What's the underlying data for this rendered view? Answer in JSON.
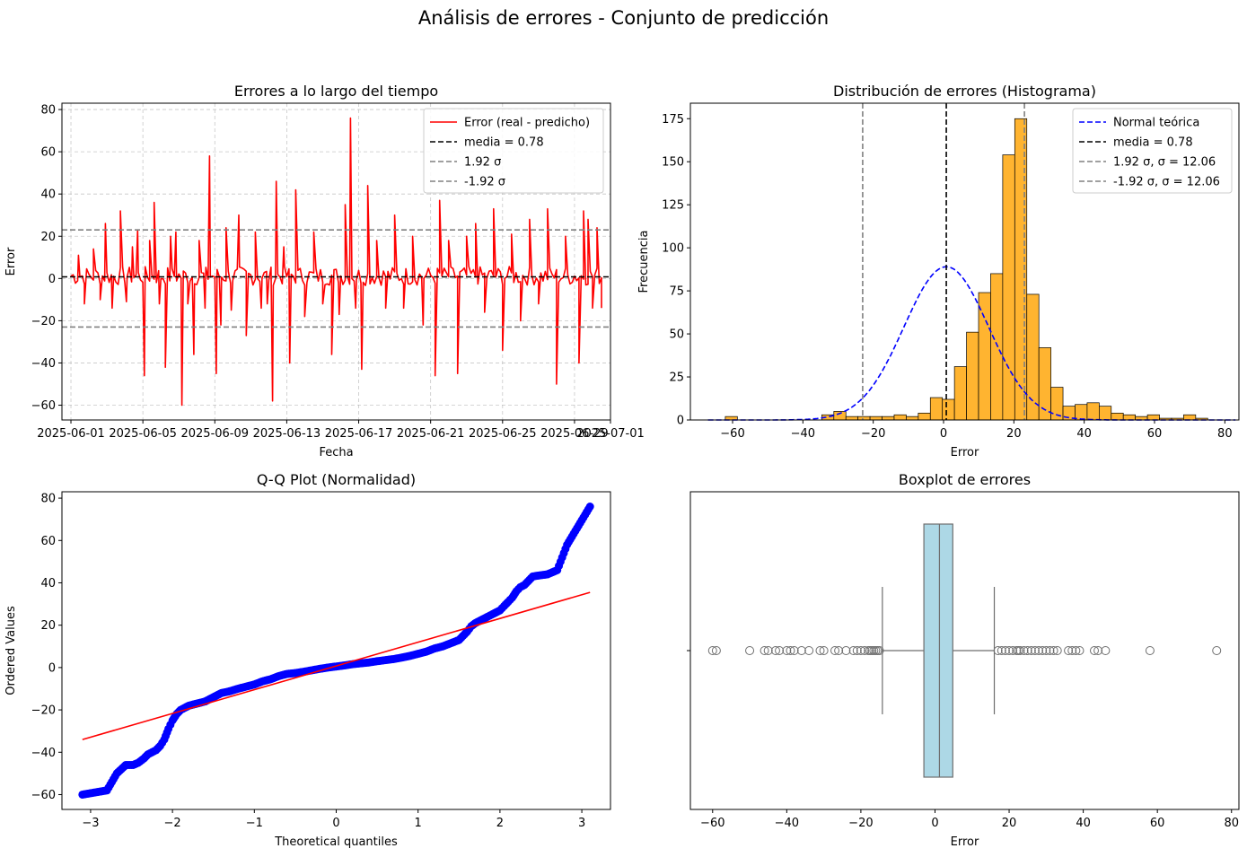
{
  "figure": {
    "suptitle": "Análisis de errores - Conjunto de predicción"
  },
  "chart_data": [
    {
      "id": "ts",
      "type": "line",
      "title": "Errores a lo largo del tiempo",
      "xlabel": "Fecha",
      "ylabel": "Error",
      "x_tick_labels": [
        "2025-06-01",
        "2025-06-05",
        "2025-06-09",
        "2025-06-13",
        "2025-06-17",
        "2025-06-21",
        "2025-06-25",
        "2025-06-29",
        "2025-07-01"
      ],
      "x_range": [
        "2025-05-31T12:00",
        "2025-07-01T00:00"
      ],
      "ylim": [
        -67,
        83
      ],
      "y_ticks": [
        -60,
        -40,
        -20,
        0,
        20,
        40,
        60,
        80
      ],
      "grid": true,
      "legend_position": "top-right",
      "legend": [
        "Error (real - predicho)",
        "media = 0.78",
        "1.92 σ",
        "-1.92 σ"
      ],
      "mean": 0.78,
      "upper_band": 23.0,
      "lower_band": -23.0,
      "series": [
        {
          "name": "Error (real - predicho)",
          "color": "#ff0000",
          "start": "2025-06-01T00:00",
          "end": "2025-06-30T12:00",
          "spikes": [
            [
              "2025-06-01T10:00",
              11
            ],
            [
              "2025-06-01T18:00",
              -12
            ],
            [
              "2025-06-02T06:00",
              14
            ],
            [
              "2025-06-02T15:00",
              -10
            ],
            [
              "2025-06-02T22:00",
              26
            ],
            [
              "2025-06-03T07:00",
              -14
            ],
            [
              "2025-06-03T18:00",
              32
            ],
            [
              "2025-06-04T02:00",
              -11
            ],
            [
              "2025-06-04T10:00",
              15
            ],
            [
              "2025-06-04T17:00",
              23
            ],
            [
              "2025-06-05T02:00",
              -46
            ],
            [
              "2025-06-05T09:00",
              18
            ],
            [
              "2025-06-05T15:00",
              36
            ],
            [
              "2025-06-05T22:00",
              -12
            ],
            [
              "2025-06-06T06:00",
              -42
            ],
            [
              "2025-06-06T13:00",
              20
            ],
            [
              "2025-06-06T20:00",
              22
            ],
            [
              "2025-06-07T04:00",
              -60
            ],
            [
              "2025-06-07T12:00",
              -12
            ],
            [
              "2025-06-07T20:00",
              -36
            ],
            [
              "2025-06-08T03:00",
              18
            ],
            [
              "2025-06-08T11:00",
              -14
            ],
            [
              "2025-06-08T17:00",
              58
            ],
            [
              "2025-06-09T02:00",
              -45
            ],
            [
              "2025-06-09T08:00",
              -22
            ],
            [
              "2025-06-09T15:00",
              24
            ],
            [
              "2025-06-09T22:00",
              -15
            ],
            [
              "2025-06-10T08:00",
              30
            ],
            [
              "2025-06-10T18:00",
              -27
            ],
            [
              "2025-06-11T06:00",
              22
            ],
            [
              "2025-06-11T14:00",
              -14
            ],
            [
              "2025-06-11T22:00",
              -12
            ],
            [
              "2025-06-12T05:00",
              -58
            ],
            [
              "2025-06-12T10:00",
              46
            ],
            [
              "2025-06-12T20:00",
              15
            ],
            [
              "2025-06-13T04:00",
              -40
            ],
            [
              "2025-06-13T12:00",
              42
            ],
            [
              "2025-06-14T00:00",
              -18
            ],
            [
              "2025-06-14T12:00",
              22
            ],
            [
              "2025-06-15T00:00",
              -12
            ],
            [
              "2025-06-15T12:00",
              -36
            ],
            [
              "2025-06-15T22:00",
              -17
            ],
            [
              "2025-06-16T06:00",
              35
            ],
            [
              "2025-06-16T13:00",
              76
            ],
            [
              "2025-06-16T20:00",
              -14
            ],
            [
              "2025-06-17T04:00",
              -43
            ],
            [
              "2025-06-17T12:00",
              44
            ],
            [
              "2025-06-18T00:00",
              18
            ],
            [
              "2025-06-18T12:00",
              -14
            ],
            [
              "2025-06-19T00:00",
              30
            ],
            [
              "2025-06-19T12:00",
              -14
            ],
            [
              "2025-06-20T00:00",
              20
            ],
            [
              "2025-06-20T14:00",
              -22
            ],
            [
              "2025-06-21T06:00",
              -46
            ],
            [
              "2025-06-21T12:00",
              37
            ],
            [
              "2025-06-22T00:00",
              18
            ],
            [
              "2025-06-22T12:00",
              -45
            ],
            [
              "2025-06-23T00:00",
              20
            ],
            [
              "2025-06-23T12:00",
              26
            ],
            [
              "2025-06-24T00:00",
              -16
            ],
            [
              "2025-06-24T12:00",
              33
            ],
            [
              "2025-06-25T00:00",
              -34
            ],
            [
              "2025-06-25T12:00",
              21
            ],
            [
              "2025-06-26T00:00",
              -20
            ],
            [
              "2025-06-26T12:00",
              28
            ],
            [
              "2025-06-27T00:00",
              -12
            ],
            [
              "2025-06-27T12:00",
              33
            ],
            [
              "2025-06-28T00:00",
              -50
            ],
            [
              "2025-06-28T12:00",
              20
            ],
            [
              "2025-06-29T06:00",
              -40
            ],
            [
              "2025-06-29T12:00",
              32
            ],
            [
              "2025-06-29T18:00",
              28
            ],
            [
              "2025-06-30T00:00",
              -14
            ],
            [
              "2025-06-30T06:00",
              24
            ],
            [
              "2025-06-30T12:00",
              -14
            ]
          ]
        }
      ],
      "reference_lines": [
        {
          "name": "media = 0.78",
          "y": 0.78,
          "color": "#000000",
          "dash": "dashed"
        },
        {
          "name": "1.92 σ",
          "y": 23.0,
          "color": "#808080",
          "dash": "dashed"
        },
        {
          "name": "-1.92 σ",
          "y": -23.0,
          "color": "#808080",
          "dash": "dashed"
        }
      ]
    },
    {
      "id": "hist",
      "type": "bar",
      "title": "Distribución de errores (Histograma)",
      "xlabel": "Error",
      "ylabel": "Frecuencia",
      "xlim": [
        -72,
        84
      ],
      "ylim": [
        0,
        184
      ],
      "x_ticks": [
        -60,
        -40,
        -20,
        0,
        20,
        40,
        60,
        80
      ],
      "y_ticks": [
        0,
        25,
        50,
        75,
        100,
        125,
        150,
        175
      ],
      "legend_position": "top-right",
      "legend": [
        "Normal teórica",
        "media = 0.78",
        "1.92 σ,  σ = 12.06",
        "-1.92 σ, σ = 12.06"
      ],
      "bar_color": "#ffb430",
      "bin_start": -65.5,
      "bin_width": 3.43,
      "counts": [
        0,
        2,
        0,
        0,
        0,
        0,
        0,
        0,
        0,
        3,
        5,
        2,
        2,
        2,
        2,
        3,
        2,
        4,
        13,
        12,
        31,
        51,
        74,
        85,
        154,
        175,
        73,
        42,
        19,
        8,
        9,
        10,
        8,
        4,
        3,
        2,
        3,
        1,
        1,
        3,
        1,
        0,
        0,
        0,
        0,
        1,
        0,
        0,
        0,
        0,
        0,
        1,
        0,
        0,
        0,
        0
      ],
      "normal_curve": {
        "name": "Normal teórica",
        "mu": 0.78,
        "sigma": 12.06,
        "peak": 89,
        "color": "#0000ff"
      },
      "reference_lines": [
        {
          "name": "media = 0.78",
          "x": 0.78,
          "color": "#000000"
        },
        {
          "name": "1.92 σ,  σ = 12.06",
          "x": 23.0,
          "color": "#808080"
        },
        {
          "name": "-1.92 σ, σ = 12.06",
          "x": -23.0,
          "color": "#808080"
        }
      ]
    },
    {
      "id": "qq",
      "type": "scatter",
      "title": "Q-Q Plot (Normalidad)",
      "xlabel": "Theoretical quantiles",
      "ylabel": "Ordered Values",
      "xlim": [
        -3.35,
        3.35
      ],
      "ylim": [
        -67,
        83
      ],
      "x_ticks": [
        -3,
        -2,
        -1,
        0,
        1,
        2,
        3
      ],
      "y_ticks": [
        -60,
        -40,
        -20,
        0,
        20,
        40,
        60,
        80
      ],
      "point_color": "#0000ff",
      "fit_line": {
        "x": [
          -3.1,
          3.1
        ],
        "y": [
          -34,
          35.5
        ],
        "color": "#ff0000"
      },
      "points": [
        [
          -3.1,
          -60
        ],
        [
          -2.8,
          -58
        ],
        [
          -2.68,
          -50
        ],
        [
          -2.57,
          -46
        ],
        [
          -2.48,
          -46
        ],
        [
          -2.42,
          -45
        ],
        [
          -2.35,
          -43
        ],
        [
          -2.3,
          -41
        ],
        [
          -2.25,
          -40
        ],
        [
          -2.2,
          -39
        ],
        [
          -2.15,
          -37
        ],
        [
          -2.1,
          -34
        ],
        [
          -2.05,
          -29
        ],
        [
          -2.0,
          -25
        ],
        [
          -1.95,
          -22
        ],
        [
          -1.9,
          -20
        ],
        [
          -1.85,
          -19
        ],
        [
          -1.8,
          -18
        ],
        [
          -1.75,
          -17.5
        ],
        [
          -1.7,
          -17
        ],
        [
          -1.65,
          -16.5
        ],
        [
          -1.6,
          -16
        ],
        [
          -1.55,
          -15
        ],
        [
          -1.5,
          -14
        ],
        [
          -1.45,
          -13
        ],
        [
          -1.4,
          -12
        ],
        [
          -1.3,
          -11.2
        ],
        [
          -1.2,
          -10
        ],
        [
          -1.1,
          -9
        ],
        [
          -1.0,
          -8
        ],
        [
          -0.9,
          -6.5
        ],
        [
          -0.8,
          -5.5
        ],
        [
          -0.7,
          -4
        ],
        [
          -0.6,
          -3
        ],
        [
          -0.5,
          -2.6
        ],
        [
          -0.4,
          -2
        ],
        [
          -0.3,
          -1.3
        ],
        [
          -0.2,
          -0.6
        ],
        [
          -0.1,
          0
        ],
        [
          0,
          0.5
        ],
        [
          0.1,
          1.0
        ],
        [
          0.2,
          1.6
        ],
        [
          0.3,
          2.0
        ],
        [
          0.4,
          2.4
        ],
        [
          0.5,
          3
        ],
        [
          0.6,
          3.5
        ],
        [
          0.7,
          4
        ],
        [
          0.8,
          4.7
        ],
        [
          0.9,
          5.5
        ],
        [
          1.0,
          6.5
        ],
        [
          1.1,
          7.5
        ],
        [
          1.2,
          9
        ],
        [
          1.3,
          10
        ],
        [
          1.4,
          11.5
        ],
        [
          1.5,
          13
        ],
        [
          1.55,
          15
        ],
        [
          1.6,
          17
        ],
        [
          1.65,
          19.5
        ],
        [
          1.7,
          21
        ],
        [
          1.75,
          22
        ],
        [
          1.8,
          23
        ],
        [
          1.85,
          24
        ],
        [
          1.9,
          25
        ],
        [
          1.95,
          26
        ],
        [
          2.0,
          27
        ],
        [
          2.05,
          29
        ],
        [
          2.1,
          31
        ],
        [
          2.15,
          33
        ],
        [
          2.2,
          36
        ],
        [
          2.25,
          38
        ],
        [
          2.3,
          39
        ],
        [
          2.4,
          43
        ],
        [
          2.48,
          43.5
        ],
        [
          2.58,
          44
        ],
        [
          2.7,
          46
        ],
        [
          2.82,
          58
        ],
        [
          3.1,
          76
        ]
      ]
    },
    {
      "id": "box",
      "type": "box",
      "title": "Boxplot de errores",
      "xlabel": "Error",
      "xlim": [
        -66,
        82
      ],
      "x_ticks": [
        -60,
        -40,
        -20,
        0,
        20,
        40,
        60,
        80
      ],
      "box_color": "#add8e6",
      "q1": -3.0,
      "median": 1.2,
      "q3": 4.8,
      "whisker_low": -14.2,
      "whisker_high": 16.0,
      "outliers": [
        -60,
        -59,
        -50,
        -46,
        -45,
        -43,
        -42,
        -40,
        -39,
        -38,
        -36,
        -34,
        -31,
        -30,
        -27,
        -26,
        -24,
        -22,
        -21,
        -20,
        -19,
        -18,
        -17.5,
        -17,
        -16.5,
        -16,
        -15.5,
        -15,
        17,
        18,
        19,
        20,
        21,
        22,
        22.5,
        23,
        24,
        25,
        26,
        27,
        28,
        29,
        30,
        31,
        32,
        33,
        36,
        37,
        38,
        39,
        43,
        44,
        46,
        58,
        76
      ]
    }
  ]
}
